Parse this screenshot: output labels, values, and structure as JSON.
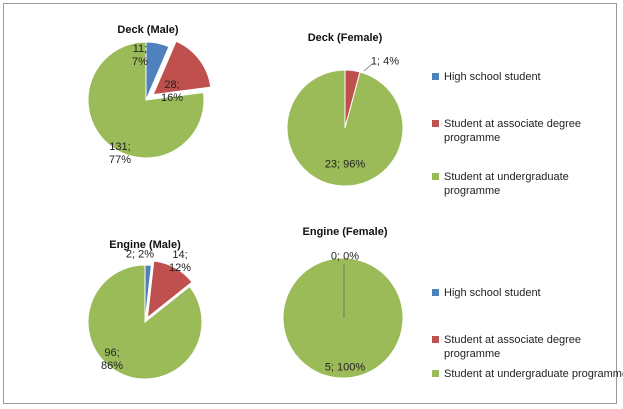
{
  "chart_data": [
    {
      "type": "pie",
      "title": "Deck (Male)",
      "categories": [
        "High school student",
        "Student at associate degree programme",
        "Student at undergraduate programme"
      ],
      "values": [
        11,
        28,
        131
      ],
      "value_labels": [
        "11; 7%",
        "28; 16%",
        "131; 77%"
      ],
      "colors": [
        "#4f81bd",
        "#c0504d",
        "#9bbb59"
      ]
    },
    {
      "type": "pie",
      "title": "Deck (Female)",
      "categories": [
        "High school student",
        "Student at associate degree programme",
        "Student at undergraduate programme"
      ],
      "values": [
        0,
        1,
        23
      ],
      "value_labels": [
        null,
        "1; 4%",
        "23; 96%"
      ],
      "colors": [
        "#4f81bd",
        "#c0504d",
        "#9bbb59"
      ]
    },
    {
      "type": "pie",
      "title": "Engine (Male)",
      "categories": [
        "High school student",
        "Student at associate degree programme",
        "Student at undergraduate programme"
      ],
      "values": [
        2,
        14,
        96
      ],
      "value_labels": [
        "2; 2%",
        "14; 12%",
        "96; 86%"
      ],
      "colors": [
        "#4f81bd",
        "#c0504d",
        "#9bbb59"
      ]
    },
    {
      "type": "pie",
      "title": "Engine (Female)",
      "categories": [
        "High school student",
        "Student at associate degree programme",
        "Student at undergraduate programme"
      ],
      "values": [
        0,
        0,
        5
      ],
      "value_labels": [
        "0; 0%",
        null,
        "5; 100%"
      ],
      "colors": [
        "#4f81bd",
        "#c0504d",
        "#9bbb59"
      ]
    }
  ]
}
